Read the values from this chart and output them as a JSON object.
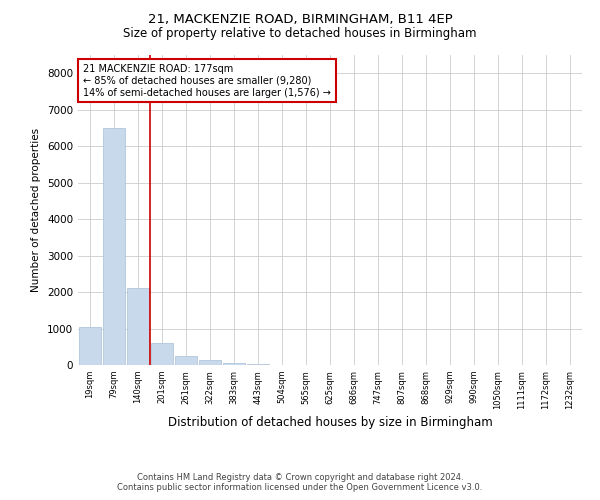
{
  "title_line1": "21, MACKENZIE ROAD, BIRMINGHAM, B11 4EP",
  "title_line2": "Size of property relative to detached houses in Birmingham",
  "xlabel": "Distribution of detached houses by size in Birmingham",
  "ylabel": "Number of detached properties",
  "annotation_line1": "21 MACKENZIE ROAD: 177sqm",
  "annotation_line2": "← 85% of detached houses are smaller (9,280)",
  "annotation_line3": "14% of semi-detached houses are larger (1,576) →",
  "bar_color": "#c9d9ec",
  "bar_edge_color": "#a8bfd8",
  "vline_color": "#cc0000",
  "annotation_box_color": "#cc0000",
  "footer_line1": "Contains HM Land Registry data © Crown copyright and database right 2024.",
  "footer_line2": "Contains public sector information licensed under the Open Government Licence v3.0.",
  "categories": [
    "19sqm",
    "79sqm",
    "140sqm",
    "201sqm",
    "261sqm",
    "322sqm",
    "383sqm",
    "443sqm",
    "504sqm",
    "565sqm",
    "625sqm",
    "686sqm",
    "747sqm",
    "807sqm",
    "868sqm",
    "929sqm",
    "990sqm",
    "1050sqm",
    "1111sqm",
    "1172sqm",
    "1232sqm"
  ],
  "values": [
    1050,
    6500,
    2100,
    600,
    250,
    130,
    60,
    40,
    10,
    5,
    0,
    0,
    0,
    0,
    0,
    0,
    0,
    0,
    0,
    0,
    0
  ],
  "vline_index": 2.5,
  "ylim": [
    0,
    8500
  ],
  "yticks": [
    0,
    1000,
    2000,
    3000,
    4000,
    5000,
    6000,
    7000,
    8000
  ],
  "background_color": "#ffffff",
  "grid_color": "#cccccc"
}
